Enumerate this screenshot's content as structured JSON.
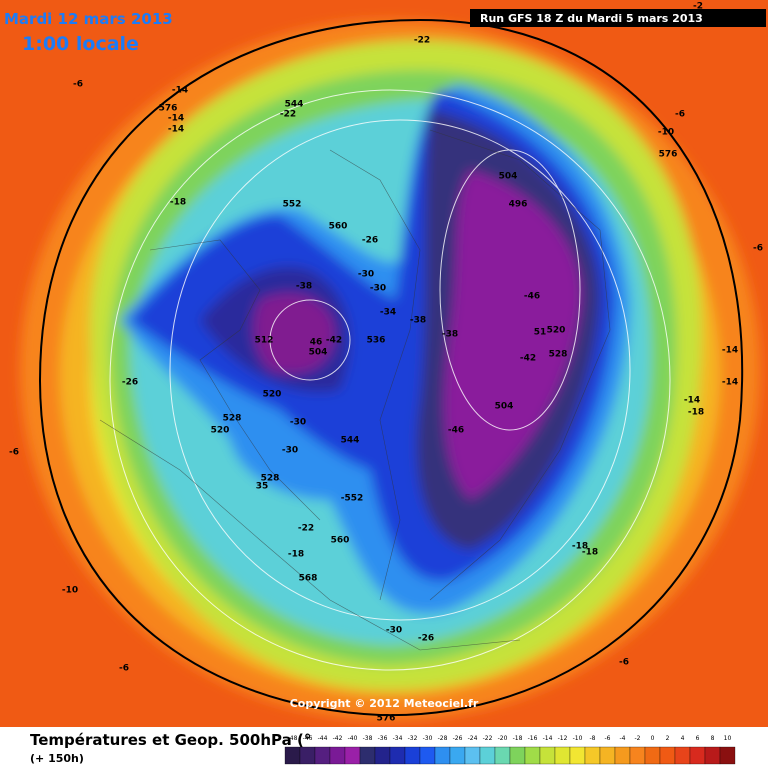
{
  "header": {
    "date": "Mardi 12 mars 2013",
    "time": "1:00 locale",
    "run": "Run GFS 18 Z du Mardi 5 mars 2013"
  },
  "map": {
    "labels": [
      "-22",
      "-14",
      "576",
      "-14",
      "-14",
      "544",
      "-22",
      "-6",
      "-18",
      "552",
      "560",
      "-26",
      "-30",
      "-30",
      "-38",
      "-34",
      "-38",
      "512",
      "46",
      "504",
      "-42",
      "536",
      "-38",
      "-46",
      "504",
      "496",
      "51",
      "520",
      "528",
      "-42",
      "504",
      "-46",
      "520",
      "528",
      "520",
      "-30",
      "-30",
      "544",
      "528",
      "35",
      "-552",
      "-22",
      "560",
      "-18",
      "568",
      "-10",
      "-26",
      "-6",
      "-30",
      "-26",
      "-6",
      "-6",
      "-18",
      "-18",
      "-14",
      "-14",
      "-14",
      "-18",
      "-6",
      "576",
      "-10",
      "-6",
      "-2",
      "576"
    ],
    "copyright": "Copyright © 2012 Meteociel.fr"
  },
  "footer": {
    "title": "Températures et Geop. 500hPa (°",
    "lead": "(+ 150h)"
  },
  "scale": {
    "ticks": [
      -48,
      -46,
      -44,
      -42,
      -40,
      -38,
      -36,
      -34,
      -32,
      -30,
      -28,
      -26,
      -24,
      -22,
      -20,
      -18,
      -16,
      -14,
      -12,
      -10,
      -8,
      -6,
      -4,
      -2,
      0,
      2,
      4,
      6,
      8,
      10
    ]
  }
}
